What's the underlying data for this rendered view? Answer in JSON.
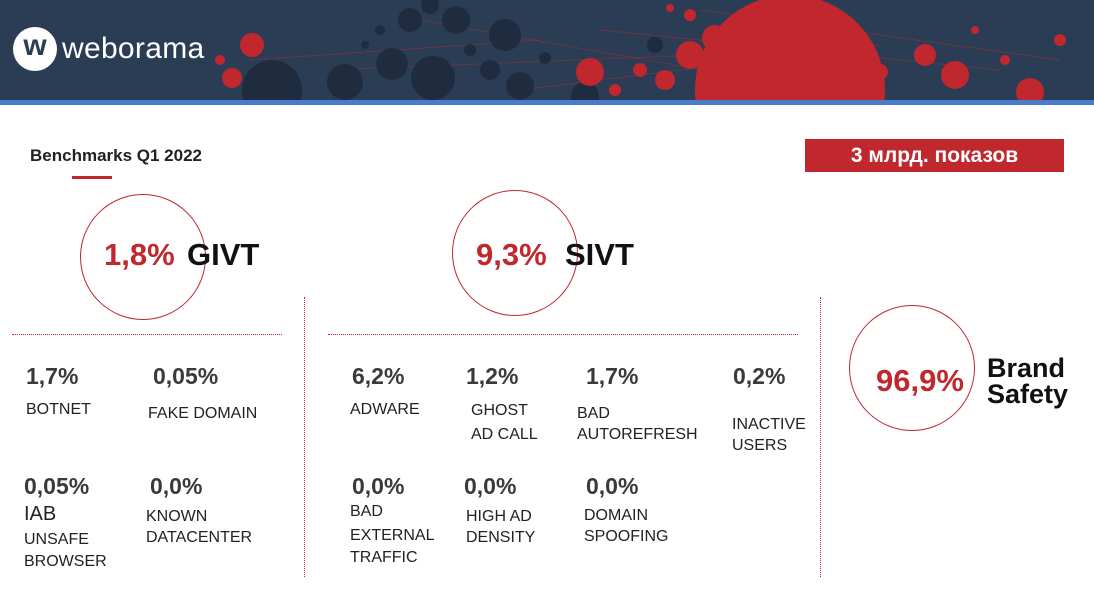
{
  "header": {
    "brand": "weborama",
    "logo_mark": "w"
  },
  "title": "Benchmarks Q1 2022",
  "badge": "3 млрд. показов",
  "givt": {
    "value": "1,8%",
    "label": "GIVT"
  },
  "sivt": {
    "value": "9,3%",
    "label": "SIVT"
  },
  "brand_safety": {
    "value": "96,9%",
    "label_line1": "Brand",
    "label_line2": "Safety"
  },
  "givt_items": [
    {
      "value": "1,7%",
      "label": "BOTNET"
    },
    {
      "value": "0,05%",
      "label": "FAKE DOMAIN"
    },
    {
      "value": "0,05%",
      "label_line1": "IAB",
      "label_line2": "UNSAFE",
      "label_line3": "BROWSER"
    },
    {
      "value": "0,0%",
      "label_line1": "KNOWN",
      "label_line2": "DATACENTER"
    }
  ],
  "sivt_items": [
    {
      "value": "6,2%",
      "label": "ADWARE"
    },
    {
      "value": "1,2%",
      "label_line1": "GHOST",
      "label_line2": "AD CALL"
    },
    {
      "value": "1,7%",
      "label_line1": "BAD",
      "label_line2": "AUTOREFRESH"
    },
    {
      "value": "0,2%",
      "label_line1": "INACTIVE",
      "label_line2": "USERS"
    },
    {
      "value": "0,0%",
      "label_line1": "BAD",
      "label_line2": "EXTERNAL",
      "label_line3": "TRAFFIC"
    },
    {
      "value": "0,0%",
      "label_line1": "HIGH AD",
      "label_line2": "DENSITY"
    },
    {
      "value": "0,0%",
      "label_line1": "DOMAIN",
      "label_line2": "SPOOFING"
    }
  ],
  "colors": {
    "accent": "#c0282e",
    "header_bg": "#2b3d55",
    "header_line": "#4a7cc9"
  }
}
